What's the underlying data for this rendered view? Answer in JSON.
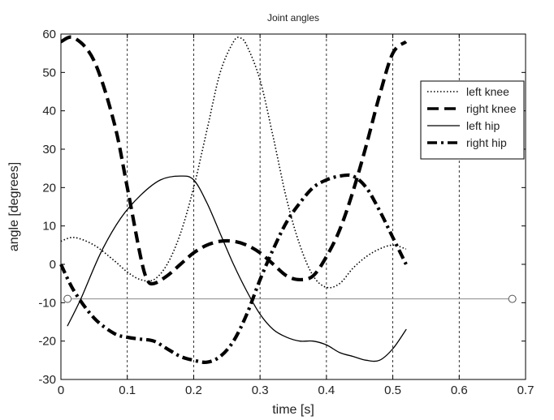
{
  "chart_data": {
    "type": "line",
    "title": "Joint angles",
    "xlabel": "time [s]",
    "ylabel": "angle [degrees]",
    "xlim": [
      0,
      0.7
    ],
    "ylim": [
      -30,
      60
    ],
    "x_ticks": [
      "0",
      "0.1",
      "0.2",
      "0.3",
      "0.4",
      "0.5",
      "0.6",
      "0.7"
    ],
    "y_ticks": [
      "-30",
      "-20",
      "-10",
      "0",
      "10",
      "20",
      "30",
      "40",
      "50",
      "60"
    ],
    "grid": "vertical dotted lines at each x tick",
    "legend_position": "right",
    "reference_line": {
      "y": -9,
      "x": [
        0.01,
        0.68
      ],
      "color": "#888888",
      "markers": "circles at both ends"
    },
    "series": [
      {
        "name": "left knee",
        "style": "dotted",
        "color": "#000000",
        "x": [
          0.0,
          0.02,
          0.05,
          0.08,
          0.1,
          0.12,
          0.14,
          0.16,
          0.18,
          0.2,
          0.22,
          0.24,
          0.26,
          0.27,
          0.28,
          0.3,
          0.32,
          0.34,
          0.36,
          0.38,
          0.4,
          0.42,
          0.44,
          0.46,
          0.48,
          0.5,
          0.52
        ],
        "y": [
          6,
          7,
          5,
          1,
          -2,
          -4,
          -4,
          0,
          8,
          20,
          35,
          50,
          58,
          59,
          57,
          48,
          33,
          17,
          5,
          -3,
          -6,
          -5,
          -1,
          2,
          4,
          5,
          4
        ]
      },
      {
        "name": "right knee",
        "style": "dashed",
        "color": "#000000",
        "x": [
          0.0,
          0.02,
          0.05,
          0.08,
          0.1,
          0.12,
          0.13,
          0.14,
          0.16,
          0.18,
          0.2,
          0.22,
          0.24,
          0.26,
          0.28,
          0.3,
          0.32,
          0.34,
          0.36,
          0.38,
          0.4,
          0.42,
          0.44,
          0.46,
          0.48,
          0.5,
          0.52
        ],
        "y": [
          58,
          59,
          53,
          37,
          20,
          2,
          -4,
          -5,
          -3,
          0,
          3,
          5,
          6,
          6,
          5,
          3,
          0,
          -3,
          -4,
          -3,
          2,
          9,
          19,
          31,
          44,
          55,
          58
        ]
      },
      {
        "name": "left hip",
        "style": "solid",
        "color": "#000000",
        "x": [
          0.01,
          0.03,
          0.06,
          0.09,
          0.12,
          0.15,
          0.18,
          0.2,
          0.22,
          0.24,
          0.26,
          0.28,
          0.3,
          0.32,
          0.34,
          0.36,
          0.38,
          0.4,
          0.42,
          0.44,
          0.46,
          0.48,
          0.5,
          0.52
        ],
        "y": [
          -16,
          -9,
          3,
          12,
          18,
          22,
          23,
          22,
          16,
          8,
          0,
          -7,
          -13,
          -17,
          -19,
          -20,
          -20,
          -21,
          -23,
          -24,
          -25,
          -25,
          -22,
          -17
        ]
      },
      {
        "name": "right hip",
        "style": "dash-dot",
        "color": "#000000",
        "x": [
          0.0,
          0.02,
          0.05,
          0.08,
          0.1,
          0.12,
          0.14,
          0.16,
          0.18,
          0.2,
          0.22,
          0.24,
          0.26,
          0.28,
          0.3,
          0.32,
          0.34,
          0.36,
          0.38,
          0.4,
          0.42,
          0.44,
          0.46,
          0.48,
          0.5,
          0.52
        ],
        "y": [
          0,
          -7,
          -14,
          -18,
          -19,
          -19.5,
          -20,
          -22,
          -24,
          -25,
          -25.5,
          -24,
          -20,
          -13,
          -4,
          4,
          11,
          16,
          20,
          22,
          23,
          23,
          20,
          14,
          7,
          0
        ]
      }
    ]
  }
}
